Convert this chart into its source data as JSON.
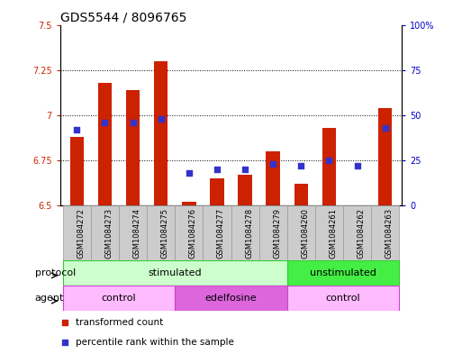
{
  "title": "GDS5544 / 8096765",
  "samples": [
    "GSM1084272",
    "GSM1084273",
    "GSM1084274",
    "GSM1084275",
    "GSM1084276",
    "GSM1084277",
    "GSM1084278",
    "GSM1084279",
    "GSM1084260",
    "GSM1084261",
    "GSM1084262",
    "GSM1084263"
  ],
  "bar_values": [
    6.88,
    7.18,
    7.14,
    7.3,
    6.52,
    6.65,
    6.67,
    6.8,
    6.62,
    6.93,
    6.5,
    7.04
  ],
  "bar_base": 6.5,
  "blue_values": [
    42,
    46,
    46,
    48,
    18,
    20,
    20,
    23,
    22,
    25,
    22,
    43
  ],
  "ylim_left": [
    6.5,
    7.5
  ],
  "ylim_right": [
    0,
    100
  ],
  "yticks_left": [
    6.5,
    6.75,
    7.0,
    7.25,
    7.5
  ],
  "yticks_left_labels": [
    "6.5",
    "6.75",
    "7",
    "7.25",
    "7.5"
  ],
  "yticks_right": [
    0,
    25,
    50,
    75,
    100
  ],
  "yticks_right_labels": [
    "0",
    "25",
    "50",
    "75",
    "100%"
  ],
  "bar_color": "#cc2200",
  "blue_color": "#3333cc",
  "grid_ticks": [
    6.75,
    7.0,
    7.25
  ],
  "protocol_groups": [
    {
      "label": "stimulated",
      "start": 0,
      "end": 7,
      "color": "#ccffcc",
      "border_color": "#33cc33"
    },
    {
      "label": "unstimulated",
      "start": 8,
      "end": 11,
      "color": "#44ee44",
      "border_color": "#33cc33"
    }
  ],
  "agent_groups": [
    {
      "label": "control",
      "start": 0,
      "end": 3,
      "color": "#ffbbff",
      "border_color": "#cc44cc"
    },
    {
      "label": "edelfosine",
      "start": 4,
      "end": 7,
      "color": "#dd66dd",
      "border_color": "#cc44cc"
    },
    {
      "label": "control",
      "start": 8,
      "end": 11,
      "color": "#ffbbff",
      "border_color": "#cc44cc"
    }
  ],
  "legend_items": [
    {
      "label": "transformed count",
      "color": "#cc2200"
    },
    {
      "label": "percentile rank within the sample",
      "color": "#3333cc"
    }
  ],
  "protocol_label": "protocol",
  "agent_label": "agent",
  "left_axis_color": "#cc2200",
  "right_axis_color": "#0000cc",
  "title_fontsize": 10,
  "tick_fontsize": 7,
  "bar_width": 0.5,
  "blue_marker_size": 5,
  "sample_cell_color": "#cccccc",
  "sample_cell_border": "#999999"
}
